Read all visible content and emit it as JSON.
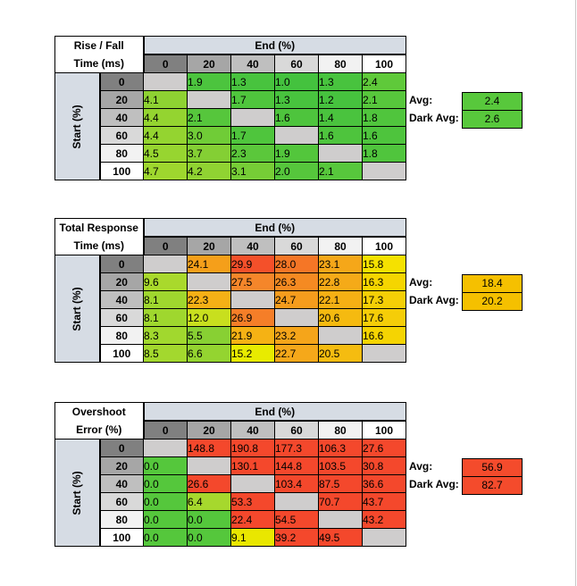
{
  "columns": [
    "0",
    "20",
    "40",
    "60",
    "80",
    "100"
  ],
  "end_label": "End (%)",
  "start_label": "Start (%)",
  "avg_label": "Avg:",
  "dark_avg_label": "Dark Avg:",
  "tables": [
    {
      "title_lines": [
        "Rise / Fall",
        "Time (ms)"
      ],
      "avg": "2.4",
      "dark_avg": "2.6",
      "avg_color": "#58c83c",
      "rows": [
        {
          "label": "0",
          "cells": [
            "",
            "1.9",
            "1.3",
            "1.0",
            "1.3",
            "2.4"
          ]
        },
        {
          "label": "20",
          "cells": [
            "4.1",
            "",
            "1.7",
            "1.3",
            "1.2",
            "2.1"
          ]
        },
        {
          "label": "40",
          "cells": [
            "4.4",
            "2.1",
            "",
            "1.6",
            "1.4",
            "1.8"
          ]
        },
        {
          "label": "60",
          "cells": [
            "4.4",
            "3.0",
            "1.7",
            "",
            "1.6",
            "1.6"
          ]
        },
        {
          "label": "80",
          "cells": [
            "4.5",
            "3.7",
            "2.3",
            "1.9",
            "",
            "1.8"
          ]
        },
        {
          "label": "100",
          "cells": [
            "4.7",
            "4.2",
            "3.1",
            "2.0",
            "2.1",
            ""
          ]
        }
      ],
      "colors": [
        [
          "#cfcdcd",
          "#4cc43e",
          "#48c33e",
          "#44c23e",
          "#48c33e",
          "#5fc93a"
        ],
        [
          "#8ed232",
          "#cfcdcd",
          "#4fc53d",
          "#48c33e",
          "#46c23e",
          "#57c73c"
        ],
        [
          "#94d430",
          "#56c63c",
          "#cfcdcd",
          "#4ec43d",
          "#4ac33e",
          "#50c53d"
        ],
        [
          "#94d430",
          "#70cc37",
          "#4fc53d",
          "#cfcdcd",
          "#4ec43d",
          "#4ec43d"
        ],
        [
          "#97d530",
          "#84cf34",
          "#5bc73b",
          "#53c63c",
          "#cfcdcd",
          "#50c53d"
        ],
        [
          "#9ed72e",
          "#90d332",
          "#76cd36",
          "#56c63c",
          "#57c73c",
          "#cfcdcd"
        ]
      ]
    },
    {
      "title_lines": [
        "Total Response",
        "Time (ms)"
      ],
      "avg": "18.4",
      "dark_avg": "20.2",
      "avg_color": "#f5c000",
      "rows": [
        {
          "label": "0",
          "cells": [
            "",
            "24.1",
            "29.9",
            "28.0",
            "23.1",
            "15.8"
          ]
        },
        {
          "label": "20",
          "cells": [
            "9.6",
            "",
            "27.5",
            "26.3",
            "22.8",
            "16.3"
          ]
        },
        {
          "label": "40",
          "cells": [
            "8.1",
            "22.3",
            "",
            "24.7",
            "22.1",
            "17.3"
          ]
        },
        {
          "label": "60",
          "cells": [
            "8.1",
            "12.0",
            "26.9",
            "",
            "20.6",
            "17.6"
          ]
        },
        {
          "label": "80",
          "cells": [
            "8.3",
            "5.5",
            "21.9",
            "23.2",
            "",
            "16.6"
          ]
        },
        {
          "label": "100",
          "cells": [
            "8.5",
            "6.6",
            "15.2",
            "22.7",
            "20.5",
            ""
          ]
        }
      ],
      "colors": [
        [
          "#cfcdcd",
          "#f59f1a",
          "#f4502a",
          "#f57626",
          "#f5a719",
          "#f5e100"
        ],
        [
          "#a9d92c",
          "#cfcdcd",
          "#f5862a",
          "#f58a22",
          "#f5aa18",
          "#f5d500"
        ],
        [
          "#9fd72e",
          "#f5b016",
          "#cfcdcd",
          "#f59c1d",
          "#f5b014",
          "#f5cf06"
        ],
        [
          "#9fd72e",
          "#c8df1e",
          "#f57e28",
          "#cfcdcd",
          "#f5ba10",
          "#f5cd08"
        ],
        [
          "#a1d82e",
          "#88d033",
          "#f5b214",
          "#f5a51a",
          "#cfcdcd",
          "#f5d402"
        ],
        [
          "#a3d82e",
          "#94d430",
          "#e8eb00",
          "#f5a81a",
          "#f5bc10",
          "#cfcdcd"
        ]
      ]
    },
    {
      "title_lines": [
        "Overshoot",
        "Error (%)"
      ],
      "avg": "56.9",
      "dark_avg": "82.7",
      "avg_color": "#f44b2c",
      "rows": [
        {
          "label": "0",
          "cells": [
            "",
            "148.8",
            "190.8",
            "177.3",
            "106.3",
            "27.6"
          ]
        },
        {
          "label": "20",
          "cells": [
            "0.0",
            "",
            "130.1",
            "144.8",
            "103.5",
            "30.8"
          ]
        },
        {
          "label": "40",
          "cells": [
            "0.0",
            "26.6",
            "",
            "103.4",
            "87.5",
            "36.6"
          ]
        },
        {
          "label": "60",
          "cells": [
            "0.0",
            "6.4",
            "53.3",
            "",
            "70.7",
            "43.7"
          ]
        },
        {
          "label": "80",
          "cells": [
            "0.0",
            "0.0",
            "22.4",
            "54.5",
            "",
            "43.2"
          ]
        },
        {
          "label": "100",
          "cells": [
            "0.0",
            "0.0",
            "9.1",
            "39.2",
            "49.5",
            ""
          ]
        }
      ],
      "colors": [
        [
          "#cfcdcd",
          "#f4482c",
          "#f4482c",
          "#f4482c",
          "#f4482c",
          "#f4482c"
        ],
        [
          "#55c73c",
          "#cfcdcd",
          "#f4482c",
          "#f4482c",
          "#f4482c",
          "#f4482c"
        ],
        [
          "#55c73c",
          "#f4482c",
          "#cfcdcd",
          "#f4482c",
          "#f4482c",
          "#f4482c"
        ],
        [
          "#55c73c",
          "#a6d82d",
          "#f4482c",
          "#cfcdcd",
          "#f4482c",
          "#f4482c"
        ],
        [
          "#55c73c",
          "#55c73c",
          "#f4482c",
          "#f4482c",
          "#cfcdcd",
          "#f4482c"
        ],
        [
          "#55c73c",
          "#55c73c",
          "#e9e700",
          "#f4482c",
          "#f4482c",
          "#cfcdcd"
        ]
      ]
    }
  ]
}
